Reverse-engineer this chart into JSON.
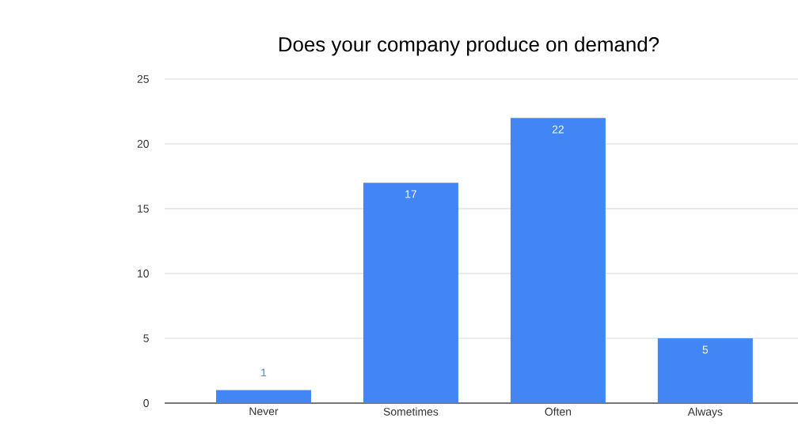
{
  "chart_data": {
    "type": "bar",
    "title": "Does your company produce on demand?",
    "categories": [
      "Never",
      "Sometimes",
      "Often",
      "Always"
    ],
    "values": [
      1,
      17,
      22,
      5
    ],
    "color": "#4285f4",
    "ylim": [
      0,
      25
    ],
    "yticks": [
      0,
      5,
      10,
      15,
      20,
      25
    ],
    "grid": "y",
    "data_labels": true
  }
}
